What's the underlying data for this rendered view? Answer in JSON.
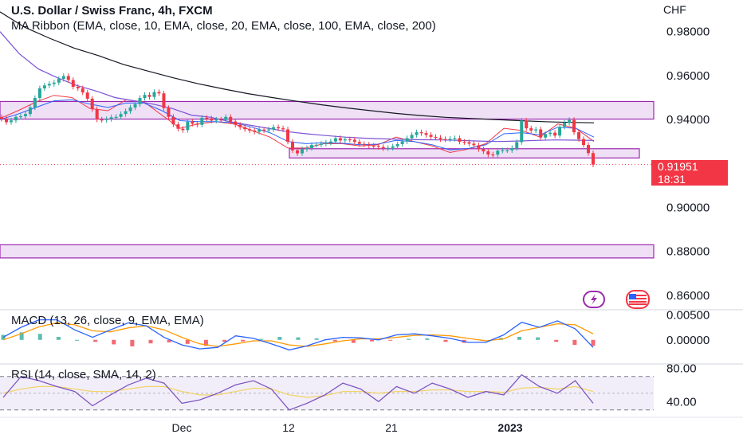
{
  "header": {
    "title": "U.S. Dollar / Swiss Franc, 4h, FXCM",
    "ribbon_legend": "MA Ribbon (EMA, close, 10, EMA, close, 20, EMA, close, 100, EMA, close, 200)",
    "currency": "CHF"
  },
  "price_tag": {
    "value": "0.91951",
    "countdown": "18:31"
  },
  "icons": {
    "bolt": "lightning-icon",
    "flag": "us-flag-icon"
  },
  "colors": {
    "up": "#26a69a",
    "down": "#f23645",
    "ema10": "#f23645",
    "ema20": "#2962ff",
    "ema100": "#7b52d6",
    "ema200": "#131722",
    "zone_fill": "#e9d5f2",
    "zone_stroke": "#9c27b0",
    "macd": "#2962ff",
    "signal": "#ff9800",
    "rsi": "#7e57c2",
    "rsi_ma": "#f2d36b"
  },
  "chart_data": [
    {
      "type": "line",
      "title": "U.S. Dollar / Swiss Franc, 4h, FXCM",
      "y_axis_label": "CHF",
      "y_ticks": [
        "0.98000",
        "0.96000",
        "0.94000",
        "0.90000",
        "0.88000",
        "0.86000"
      ],
      "x_ticks": [
        "Dec",
        "12",
        "21",
        "2023"
      ],
      "ylim": [
        0.8534,
        0.9944
      ],
      "last_price": 0.91951,
      "series": [
        {
          "name": "close",
          "values": [
            0.9403,
            0.9388,
            0.9396,
            0.9412,
            0.9415,
            0.9425,
            0.9455,
            0.9498,
            0.9542,
            0.9555,
            0.9562,
            0.9568,
            0.9585,
            0.9598,
            0.958,
            0.9549,
            0.9542,
            0.9523,
            0.9495,
            0.9447,
            0.94,
            0.9398,
            0.9402,
            0.941,
            0.9412,
            0.9425,
            0.9438,
            0.9455,
            0.947,
            0.9498,
            0.9512,
            0.9503,
            0.9525,
            0.9519,
            0.9452,
            0.9412,
            0.9378,
            0.9358,
            0.9352,
            0.939,
            0.9381,
            0.9376,
            0.9408,
            0.9405,
            0.9395,
            0.94,
            0.9398,
            0.9412,
            0.9391,
            0.9376,
            0.9365,
            0.9356,
            0.935,
            0.9344,
            0.9354,
            0.9351,
            0.9355,
            0.9365,
            0.936,
            0.9355,
            0.9299,
            0.926,
            0.9246,
            0.9265,
            0.927,
            0.9284,
            0.9285,
            0.929,
            0.9295,
            0.93,
            0.9315,
            0.9305,
            0.931,
            0.9308,
            0.9298,
            0.9289,
            0.9286,
            0.9281,
            0.9279,
            0.9275,
            0.9269,
            0.9271,
            0.9278,
            0.9288,
            0.93,
            0.9315,
            0.933,
            0.9342,
            0.9338,
            0.933,
            0.9321,
            0.9317,
            0.9311,
            0.931,
            0.9312,
            0.9315,
            0.9299,
            0.9297,
            0.929,
            0.9283,
            0.9265,
            0.9255,
            0.9241,
            0.924,
            0.9258,
            0.926,
            0.926,
            0.927,
            0.9297,
            0.9395,
            0.936,
            0.935,
            0.9355,
            0.9318,
            0.9334,
            0.934,
            0.9327,
            0.9367,
            0.9385,
            0.9398,
            0.9342,
            0.9311,
            0.9284,
            0.9247,
            0.9195
          ]
        },
        {
          "name": "EMA 10",
          "values": [
            0.9405,
            0.944,
            0.948,
            0.951,
            0.95,
            0.945,
            0.944,
            0.949,
            0.948,
            0.942,
            0.936,
            0.938,
            0.939,
            0.938,
            0.935,
            0.932,
            0.927,
            0.927,
            0.929,
            0.929,
            0.928,
            0.9285,
            0.932,
            0.93,
            0.928,
            0.925,
            0.9265,
            0.929,
            0.936,
            0.935,
            0.932,
            0.938,
            0.936,
            0.93
          ]
        },
        {
          "name": "EMA 20",
          "values": [
            0.94,
            0.9425,
            0.9455,
            0.9485,
            0.949,
            0.947,
            0.9455,
            0.9475,
            0.9475,
            0.944,
            0.9395,
            0.939,
            0.939,
            0.9385,
            0.9365,
            0.934,
            0.93,
            0.929,
            0.9295,
            0.9292,
            0.9285,
            0.9288,
            0.9305,
            0.93,
            0.9285,
            0.9262,
            0.9268,
            0.9285,
            0.9335,
            0.934,
            0.933,
            0.9365,
            0.936,
            0.932
          ]
        },
        {
          "name": "EMA 100",
          "values": [
            0.98,
            0.97,
            0.963,
            0.959,
            0.9555,
            0.953,
            0.95,
            0.9485,
            0.947,
            0.945,
            0.942,
            0.941,
            0.939,
            0.9375,
            0.936,
            0.9345,
            0.9335,
            0.9327,
            0.932,
            0.9315,
            0.9312,
            0.931,
            0.9308,
            0.9307,
            0.9305,
            0.9302,
            0.93,
            0.9302,
            0.9305,
            0.9307,
            0.9306,
            0.9305
          ]
        },
        {
          "name": "EMA 200",
          "values": [
            0.989,
            0.982,
            0.977,
            0.9725,
            0.969,
            0.965,
            0.962,
            0.959,
            0.9563,
            0.954,
            0.9518,
            0.95,
            0.9483,
            0.9467,
            0.9453,
            0.944,
            0.9428,
            0.9418,
            0.941,
            0.9405,
            0.94,
            0.9395,
            0.939,
            0.9387,
            0.9385
          ]
        }
      ],
      "zones": [
        {
          "from": 0.9402,
          "to": 0.9482
        },
        {
          "from": 0.9225,
          "to": 0.9267
        },
        {
          "from": 0.877,
          "to": 0.883
        }
      ]
    },
    {
      "type": "line",
      "title": "MACD (13, 26, close, 9, EMA, EMA)",
      "y_ticks": [
        "0.00500",
        "0.00000"
      ],
      "ylim": [
        -0.0048,
        0.006
      ],
      "series": [
        {
          "name": "MACD",
          "values": [
            0.0005,
            0.0025,
            0.004,
            0.004,
            0.002,
            0.0005,
            0.002,
            0.0034,
            0.0028,
            0.0005,
            -0.001,
            -0.0018,
            -0.0015,
            0.0008,
            0.0003,
            -0.0008,
            -0.002,
            -0.0012,
            0.0,
            0.0005,
            0.0004,
            0.0,
            0.001,
            0.0012,
            0.0008,
            0.0003,
            -0.0005,
            -0.0005,
            0.001,
            0.0035,
            0.0025,
            0.0038,
            0.0022,
            -0.0015
          ]
        },
        {
          "name": "Signal",
          "values": [
            0.0,
            0.0012,
            0.0026,
            0.0034,
            0.003,
            0.0018,
            0.0016,
            0.0024,
            0.0028,
            0.002,
            0.0005,
            -0.0008,
            -0.0013,
            -0.0008,
            -0.0002,
            -0.0002,
            -0.001,
            -0.0013,
            -0.0008,
            -0.0002,
            0.0002,
            0.0002,
            0.0005,
            0.0009,
            0.001,
            0.0008,
            0.0003,
            -0.0002,
            0.0002,
            0.0018,
            0.0025,
            0.0032,
            0.003,
            0.0012
          ]
        },
        {
          "name": "Histogram",
          "values": [
            0.001,
            0.0015,
            0.0012,
            0.0006,
            0.0,
            -0.0004,
            -0.0009,
            -0.0013,
            -0.0007,
            -0.0005,
            -0.0008,
            -0.0012,
            -0.0004,
            -0.0003,
            0.0002,
            0.0006,
            0.0005,
            0.0003,
            -0.0003,
            -0.0006,
            -0.0003,
            -0.0001,
            0.0002,
            0.0003,
            -0.0004,
            -0.0006,
            -0.0002,
            0.0004,
            0.0006,
            0.0005,
            -0.0004,
            -0.001,
            -0.0012
          ]
        }
      ]
    },
    {
      "type": "line",
      "title": "RSI (14, close, SMA, 14, 2)",
      "y_ticks": [
        "80.00",
        "40.00"
      ],
      "ylim": [
        25,
        85
      ],
      "bands": [
        30,
        70
      ],
      "series": [
        {
          "name": "RSI",
          "values": [
            45,
            70,
            65,
            58,
            52,
            35,
            48,
            60,
            68,
            62,
            38,
            42,
            50,
            60,
            65,
            55,
            30,
            38,
            48,
            62,
            55,
            40,
            58,
            50,
            62,
            55,
            45,
            52,
            48,
            72,
            58,
            50,
            65,
            38
          ]
        },
        {
          "name": "RSI MA",
          "values": [
            50,
            55,
            58,
            58,
            55,
            52,
            52,
            55,
            58,
            58,
            52,
            48,
            48,
            52,
            56,
            55,
            48,
            45,
            47,
            52,
            52,
            50,
            52,
            52,
            54,
            54,
            52,
            52,
            51,
            56,
            57,
            55,
            58,
            52
          ]
        }
      ]
    }
  ]
}
